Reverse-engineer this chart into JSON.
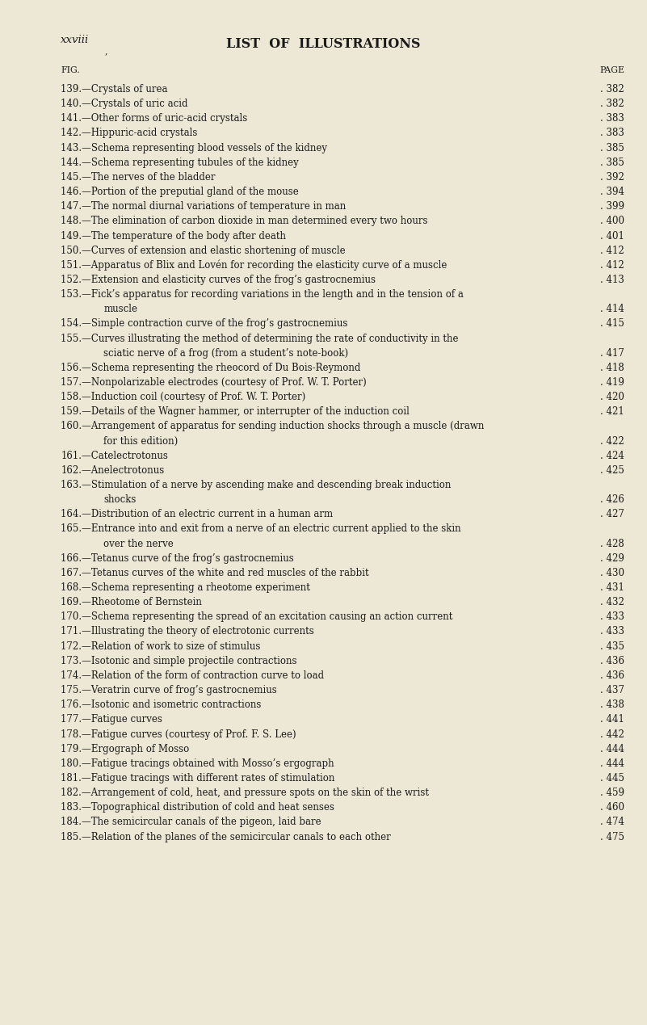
{
  "bg_color": "#ede8d5",
  "text_color": "#1a1a1a",
  "page_label": "xxviii",
  "title": "LIST  OF  ILLUSTRATIONS",
  "col_left": "FIG.",
  "col_right": "PAGE",
  "entries": [
    {
      "num": "139",
      "text": "—Crystals of urea",
      "page": "382",
      "wrap": false
    },
    {
      "num": "140",
      "text": "—Crystals of uric acid",
      "page": "382",
      "wrap": false
    },
    {
      "num": "141",
      "text": "—Other forms of uric-acid crystals",
      "page": "383",
      "wrap": false
    },
    {
      "num": "142",
      "text": "—Hippuric-acid crystals",
      "page": "383",
      "wrap": false
    },
    {
      "num": "143",
      "text": "—Schema representing blood vessels of the kidney",
      "page": "385",
      "wrap": false
    },
    {
      "num": "144",
      "text": "—Schema representing tubules of the kidney",
      "page": "385",
      "wrap": false
    },
    {
      "num": "145",
      "text": "—The nerves of the bladder",
      "page": "392",
      "wrap": false
    },
    {
      "num": "146",
      "text": "—Portion of the preputial gland of the mouse",
      "page": "394",
      "wrap": false
    },
    {
      "num": "147",
      "text": "—The normal diurnal variations of temperature in man",
      "page": "399",
      "wrap": false
    },
    {
      "num": "148",
      "text": "—The elimination of carbon dioxide in man determined every two hours",
      "page": "400",
      "wrap": false
    },
    {
      "num": "149",
      "text": "—The temperature of the body after death",
      "page": "401",
      "wrap": false
    },
    {
      "num": "150",
      "text": "—Curves of extension and elastic shortening of muscle",
      "page": "412",
      "wrap": false
    },
    {
      "num": "151",
      "text": "—Apparatus of Blix and Lovén for recording the elasticity curve of a muscle",
      "page": "412",
      "wrap": false
    },
    {
      "num": "152",
      "text": "—Extension and elasticity curves of the frog’s gastrocnemius",
      "page": "413",
      "wrap": false
    },
    {
      "num": "153",
      "text": "—Fick’s apparatus for recording variations in the length and in the tension of a",
      "page": "414",
      "wrap": true,
      "wrap2": "muscle"
    },
    {
      "num": "154",
      "text": "—Simple contraction curve of the frog’s gastrocnemius",
      "page": "415",
      "wrap": false
    },
    {
      "num": "155",
      "text": "—Curves illustrating the method of determining the rate of conductivity in the",
      "page": "417",
      "wrap": true,
      "wrap2": "sciatic nerve of a frog (from a student’s note-book)"
    },
    {
      "num": "156",
      "text": "—Schema representing the rheocord of Du Bois-Reymond",
      "page": "418",
      "wrap": false
    },
    {
      "num": "157",
      "text": "—Nonpolarizable electrodes (courtesy of Prof. W. T. Porter)",
      "page": "419",
      "wrap": false
    },
    {
      "num": "158",
      "text": "—Induction coil (courtesy of Prof. W. T. Porter)",
      "page": "420",
      "wrap": false
    },
    {
      "num": "159",
      "text": "—Details of the Wagner hammer, or interrupter of the induction coil",
      "page": "421",
      "wrap": false
    },
    {
      "num": "160",
      "text": "—Arrangement of apparatus for sending induction shocks through a muscle (drawn",
      "page": "422",
      "wrap": true,
      "wrap2": "for this edition)"
    },
    {
      "num": "161",
      "text": "—Catelectrotonus",
      "page": "424",
      "wrap": false
    },
    {
      "num": "162",
      "text": "—Anelectrotonus",
      "page": "425",
      "wrap": false
    },
    {
      "num": "163",
      "text": "—Stimulation of a nerve by ascending make and descending break induction",
      "page": "426",
      "wrap": true,
      "wrap2": "shocks"
    },
    {
      "num": "164",
      "text": "—Distribution of an electric current in a human arm",
      "page": "427",
      "wrap": false
    },
    {
      "num": "165",
      "text": "—Entrance into and exit from a nerve of an electric current applied to the skin",
      "page": "428",
      "wrap": true,
      "wrap2": "over the nerve"
    },
    {
      "num": "166",
      "text": "—Tetanus curve of the frog’s gastrocnemius",
      "page": "429",
      "wrap": false
    },
    {
      "num": "167",
      "text": "—Tetanus curves of the white and red muscles of the rabbit",
      "page": "430",
      "wrap": false
    },
    {
      "num": "168",
      "text": "—Schema representing a rheotome experiment",
      "page": "431",
      "wrap": false
    },
    {
      "num": "169",
      "text": "—Rheotome of Bernstein",
      "page": "432",
      "wrap": false
    },
    {
      "num": "170",
      "text": "—Schema representing the spread of an excitation causing an action current",
      "page": "433",
      "wrap": false
    },
    {
      "num": "171",
      "text": "—Illustrating the theory of electrotonic currents",
      "page": "433",
      "wrap": false
    },
    {
      "num": "172",
      "text": "—Relation of work to size of stimulus",
      "page": "435",
      "wrap": false
    },
    {
      "num": "173",
      "text": "—Isotonic and simple projectile contractions",
      "page": "436",
      "wrap": false
    },
    {
      "num": "174",
      "text": "—Relation of the form of contraction curve to load",
      "page": "436",
      "wrap": false
    },
    {
      "num": "175",
      "text": "—Veratrin curve of frog’s gastrocnemius",
      "page": "437",
      "wrap": false
    },
    {
      "num": "176",
      "text": "—Isotonic and isometric contractions",
      "page": "438",
      "wrap": false
    },
    {
      "num": "177",
      "text": "—Fatigue curves",
      "page": "441",
      "wrap": false
    },
    {
      "num": "178",
      "text": "—Fatigue curves (courtesy of Prof. F. S. Lee)",
      "page": "442",
      "wrap": false
    },
    {
      "num": "179",
      "text": "—Ergograph of Mosso",
      "page": "444",
      "wrap": false
    },
    {
      "num": "180",
      "text": "—Fatigue tracings obtained with Mosso’s ergograph",
      "page": "444",
      "wrap": false
    },
    {
      "num": "181",
      "text": "—Fatigue tracings with different rates of stimulation",
      "page": "445",
      "wrap": false
    },
    {
      "num": "182",
      "text": "—Arrangement of cold, heat, and pressure spots on the skin of the wrist",
      "page": "459",
      "wrap": false
    },
    {
      "num": "183",
      "text": "—Topographical distribution of cold and heat senses",
      "page": "460",
      "wrap": false
    },
    {
      "num": "184",
      "text": "—The semicircular canals of the pigeon, laid bare",
      "page": "474",
      "wrap": false
    },
    {
      "num": "185",
      "text": "—Relation of the planes of the semicircular canals to each other",
      "page": "475",
      "wrap": false
    }
  ]
}
